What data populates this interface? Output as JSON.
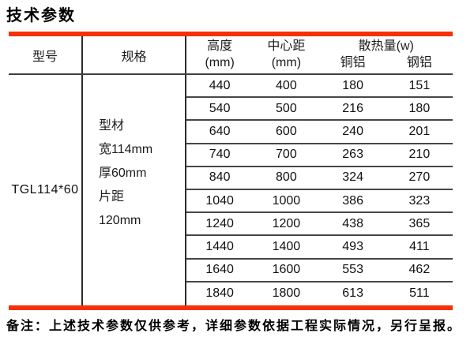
{
  "title": "技术参数",
  "colors": {
    "accent_red": "#f83008"
  },
  "table": {
    "header": {
      "col_model": "型号",
      "col_spec": "规格",
      "col_height_l1": "高度",
      "col_height_l2": "(mm)",
      "col_center_l1": "中心距",
      "col_center_l2": "(mm)",
      "col_heat": "散热量(w)",
      "col_heat_sub1": "铜铝",
      "col_heat_sub2": "钢铝"
    },
    "model": "TGL114*60",
    "spec_lines": [
      "型材",
      "宽114mm",
      "厚60mm",
      "片距",
      "120mm"
    ],
    "rows": [
      {
        "height": "440",
        "center": "400",
        "cu_al": "180",
        "steel_al": "151"
      },
      {
        "height": "540",
        "center": "500",
        "cu_al": "216",
        "steel_al": "180"
      },
      {
        "height": "640",
        "center": "600",
        "cu_al": "240",
        "steel_al": "201"
      },
      {
        "height": "740",
        "center": "700",
        "cu_al": "263",
        "steel_al": "210"
      },
      {
        "height": "840",
        "center": "800",
        "cu_al": "324",
        "steel_al": "270"
      },
      {
        "height": "1040",
        "center": "1000",
        "cu_al": "386",
        "steel_al": "323"
      },
      {
        "height": "1240",
        "center": "1200",
        "cu_al": "438",
        "steel_al": "365"
      },
      {
        "height": "1440",
        "center": "1400",
        "cu_al": "493",
        "steel_al": "411"
      },
      {
        "height": "1640",
        "center": "1600",
        "cu_al": "553",
        "steel_al": "462"
      },
      {
        "height": "1840",
        "center": "1800",
        "cu_al": "613",
        "steel_al": "511"
      }
    ]
  },
  "note": "备注：上述技术参数仅供参考，详细参数依据工程实际情况，另行呈报。"
}
